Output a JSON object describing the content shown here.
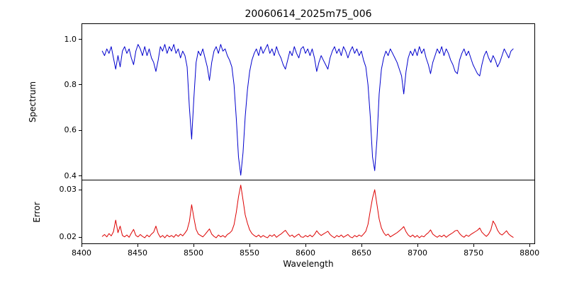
{
  "chart_data": {
    "type": "line",
    "title": "20060614_2025m75_006",
    "xlabel": "Wavelength",
    "grid": false,
    "legend": "none",
    "xlim": [
      8400,
      8805
    ],
    "xticks": [
      {
        "value": 8400,
        "label": "8400"
      },
      {
        "value": 8450,
        "label": "8450"
      },
      {
        "value": 8500,
        "label": "8500"
      },
      {
        "value": 8550,
        "label": "8550"
      },
      {
        "value": 8600,
        "label": "8600"
      },
      {
        "value": 8650,
        "label": "8650"
      },
      {
        "value": 8700,
        "label": "8700"
      },
      {
        "value": 8750,
        "label": "8750"
      },
      {
        "value": 8800,
        "label": "8800"
      }
    ],
    "panels": [
      {
        "name": "spectrum",
        "ylabel": "Spectrum",
        "ylim": [
          0.38,
          1.07
        ],
        "yticks": [
          {
            "value": 0.4,
            "label": "0.4"
          },
          {
            "value": 0.6,
            "label": "0.6"
          },
          {
            "value": 0.8,
            "label": "0.8"
          },
          {
            "value": 1.0,
            "label": "1.0"
          }
        ]
      },
      {
        "name": "error",
        "ylabel": "Error",
        "ylim": [
          0.0185,
          0.032
        ],
        "yticks": [
          {
            "value": 0.02,
            "label": "0.02"
          },
          {
            "value": 0.03,
            "label": "0.03"
          }
        ]
      }
    ],
    "x": [
      8418,
      8420,
      8422,
      8424,
      8426,
      8428,
      8430,
      8432,
      8434,
      8436,
      8438,
      8440,
      8442,
      8444,
      8446,
      8448,
      8450,
      8452,
      8454,
      8456,
      8458,
      8460,
      8462,
      8464,
      8466,
      8468,
      8470,
      8472,
      8474,
      8476,
      8478,
      8480,
      8482,
      8484,
      8486,
      8488,
      8490,
      8492,
      8494,
      8496,
      8498,
      8500,
      8502,
      8504,
      8506,
      8508,
      8510,
      8512,
      8514,
      8516,
      8518,
      8520,
      8522,
      8524,
      8526,
      8528,
      8530,
      8532,
      8534,
      8536,
      8538,
      8540,
      8542,
      8544,
      8546,
      8548,
      8550,
      8552,
      8554,
      8556,
      8558,
      8560,
      8562,
      8564,
      8566,
      8568,
      8570,
      8572,
      8574,
      8576,
      8578,
      8580,
      8582,
      8584,
      8586,
      8588,
      8590,
      8592,
      8594,
      8596,
      8598,
      8600,
      8602,
      8604,
      8606,
      8608,
      8610,
      8612,
      8614,
      8616,
      8618,
      8620,
      8622,
      8624,
      8626,
      8628,
      8630,
      8632,
      8634,
      8636,
      8638,
      8640,
      8642,
      8644,
      8646,
      8648,
      8650,
      8652,
      8654,
      8656,
      8658,
      8660,
      8662,
      8664,
      8666,
      8668,
      8670,
      8672,
      8674,
      8676,
      8678,
      8680,
      8682,
      8684,
      8686,
      8688,
      8690,
      8692,
      8694,
      8696,
      8698,
      8700,
      8702,
      8704,
      8706,
      8708,
      8710,
      8712,
      8714,
      8716,
      8718,
      8720,
      8722,
      8724,
      8726,
      8728,
      8730,
      8732,
      8734,
      8736,
      8738,
      8740,
      8742,
      8744,
      8746,
      8748,
      8750,
      8752,
      8754,
      8756,
      8758,
      8760,
      8762,
      8764,
      8766,
      8768,
      8770,
      8772,
      8774,
      8776,
      8778,
      8780,
      8782,
      8784,
      8786
    ],
    "series": [
      {
        "name": "Spectrum",
        "color": "#0000cd",
        "absorption_line_centers": [
          8498,
          8542,
          8662
        ],
        "values": [
          0.95,
          0.93,
          0.96,
          0.94,
          0.97,
          0.92,
          0.87,
          0.93,
          0.88,
          0.95,
          0.97,
          0.94,
          0.96,
          0.92,
          0.89,
          0.95,
          0.98,
          0.96,
          0.93,
          0.97,
          0.93,
          0.96,
          0.92,
          0.9,
          0.86,
          0.91,
          0.97,
          0.95,
          0.98,
          0.94,
          0.97,
          0.95,
          0.98,
          0.94,
          0.96,
          0.92,
          0.95,
          0.93,
          0.88,
          0.7,
          0.56,
          0.74,
          0.9,
          0.95,
          0.93,
          0.96,
          0.92,
          0.88,
          0.82,
          0.9,
          0.95,
          0.97,
          0.94,
          0.98,
          0.95,
          0.96,
          0.93,
          0.91,
          0.88,
          0.8,
          0.65,
          0.48,
          0.4,
          0.5,
          0.66,
          0.78,
          0.86,
          0.91,
          0.94,
          0.96,
          0.93,
          0.97,
          0.94,
          0.96,
          0.98,
          0.94,
          0.96,
          0.93,
          0.97,
          0.94,
          0.92,
          0.89,
          0.87,
          0.91,
          0.95,
          0.93,
          0.97,
          0.94,
          0.92,
          0.96,
          0.97,
          0.94,
          0.96,
          0.93,
          0.96,
          0.92,
          0.86,
          0.9,
          0.93,
          0.91,
          0.89,
          0.87,
          0.92,
          0.95,
          0.97,
          0.94,
          0.96,
          0.93,
          0.97,
          0.95,
          0.92,
          0.95,
          0.97,
          0.94,
          0.96,
          0.93,
          0.95,
          0.91,
          0.88,
          0.8,
          0.66,
          0.48,
          0.42,
          0.56,
          0.76,
          0.87,
          0.92,
          0.95,
          0.93,
          0.96,
          0.94,
          0.92,
          0.9,
          0.87,
          0.84,
          0.76,
          0.86,
          0.92,
          0.95,
          0.93,
          0.96,
          0.93,
          0.97,
          0.94,
          0.96,
          0.92,
          0.89,
          0.85,
          0.9,
          0.93,
          0.96,
          0.94,
          0.97,
          0.93,
          0.96,
          0.94,
          0.91,
          0.89,
          0.86,
          0.85,
          0.91,
          0.94,
          0.96,
          0.93,
          0.95,
          0.92,
          0.89,
          0.87,
          0.85,
          0.84,
          0.89,
          0.93,
          0.95,
          0.92,
          0.9,
          0.93,
          0.91,
          0.88,
          0.9,
          0.93,
          0.96,
          0.94,
          0.92,
          0.95,
          0.96
        ]
      },
      {
        "name": "Error",
        "color": "#dd0000",
        "peak_centers": [
          8498,
          8542,
          8662
        ],
        "values": [
          0.02,
          0.0204,
          0.0199,
          0.0206,
          0.0201,
          0.021,
          0.0235,
          0.0208,
          0.0222,
          0.0202,
          0.0199,
          0.0203,
          0.0198,
          0.0207,
          0.0215,
          0.0202,
          0.0199,
          0.0204,
          0.02,
          0.0197,
          0.0203,
          0.0199,
          0.0205,
          0.0209,
          0.0222,
          0.0206,
          0.0198,
          0.0202,
          0.0197,
          0.0203,
          0.0199,
          0.0202,
          0.0198,
          0.0204,
          0.02,
          0.0205,
          0.0201,
          0.0207,
          0.0214,
          0.0232,
          0.0268,
          0.024,
          0.0215,
          0.0205,
          0.0202,
          0.0199,
          0.0204,
          0.021,
          0.0216,
          0.0205,
          0.02,
          0.0197,
          0.0203,
          0.0199,
          0.0202,
          0.0198,
          0.0204,
          0.0207,
          0.0212,
          0.0225,
          0.0252,
          0.0285,
          0.031,
          0.0278,
          0.0246,
          0.0228,
          0.0214,
          0.0206,
          0.0202,
          0.0199,
          0.0203,
          0.0198,
          0.0202,
          0.0199,
          0.0197,
          0.0203,
          0.02,
          0.0204,
          0.0198,
          0.0202,
          0.0205,
          0.0209,
          0.0213,
          0.0206,
          0.02,
          0.0203,
          0.0198,
          0.0202,
          0.0205,
          0.0199,
          0.0198,
          0.0202,
          0.0199,
          0.0203,
          0.0199,
          0.0204,
          0.0212,
          0.0206,
          0.0202,
          0.0205,
          0.0208,
          0.0211,
          0.0204,
          0.02,
          0.0197,
          0.0202,
          0.0199,
          0.0203,
          0.0198,
          0.0201,
          0.0204,
          0.0199,
          0.0197,
          0.0202,
          0.0199,
          0.0203,
          0.02,
          0.0205,
          0.0211,
          0.0226,
          0.0255,
          0.0282,
          0.03,
          0.0268,
          0.0237,
          0.0218,
          0.0208,
          0.0202,
          0.0205,
          0.0199,
          0.0202,
          0.0205,
          0.0208,
          0.0212,
          0.0216,
          0.0221,
          0.021,
          0.0203,
          0.0199,
          0.0203,
          0.0198,
          0.0202,
          0.0197,
          0.0201,
          0.0199,
          0.0204,
          0.0208,
          0.0214,
          0.0205,
          0.0201,
          0.0198,
          0.0202,
          0.0199,
          0.0203,
          0.0198,
          0.0202,
          0.0205,
          0.0208,
          0.0212,
          0.0213,
          0.0206,
          0.0201,
          0.0198,
          0.0203,
          0.02,
          0.0204,
          0.0207,
          0.021,
          0.0213,
          0.0218,
          0.0209,
          0.0204,
          0.02,
          0.0205,
          0.0214,
          0.0233,
          0.0225,
          0.0213,
          0.0206,
          0.0203,
          0.0207,
          0.0212,
          0.0205,
          0.0201,
          0.0198
        ]
      }
    ]
  }
}
